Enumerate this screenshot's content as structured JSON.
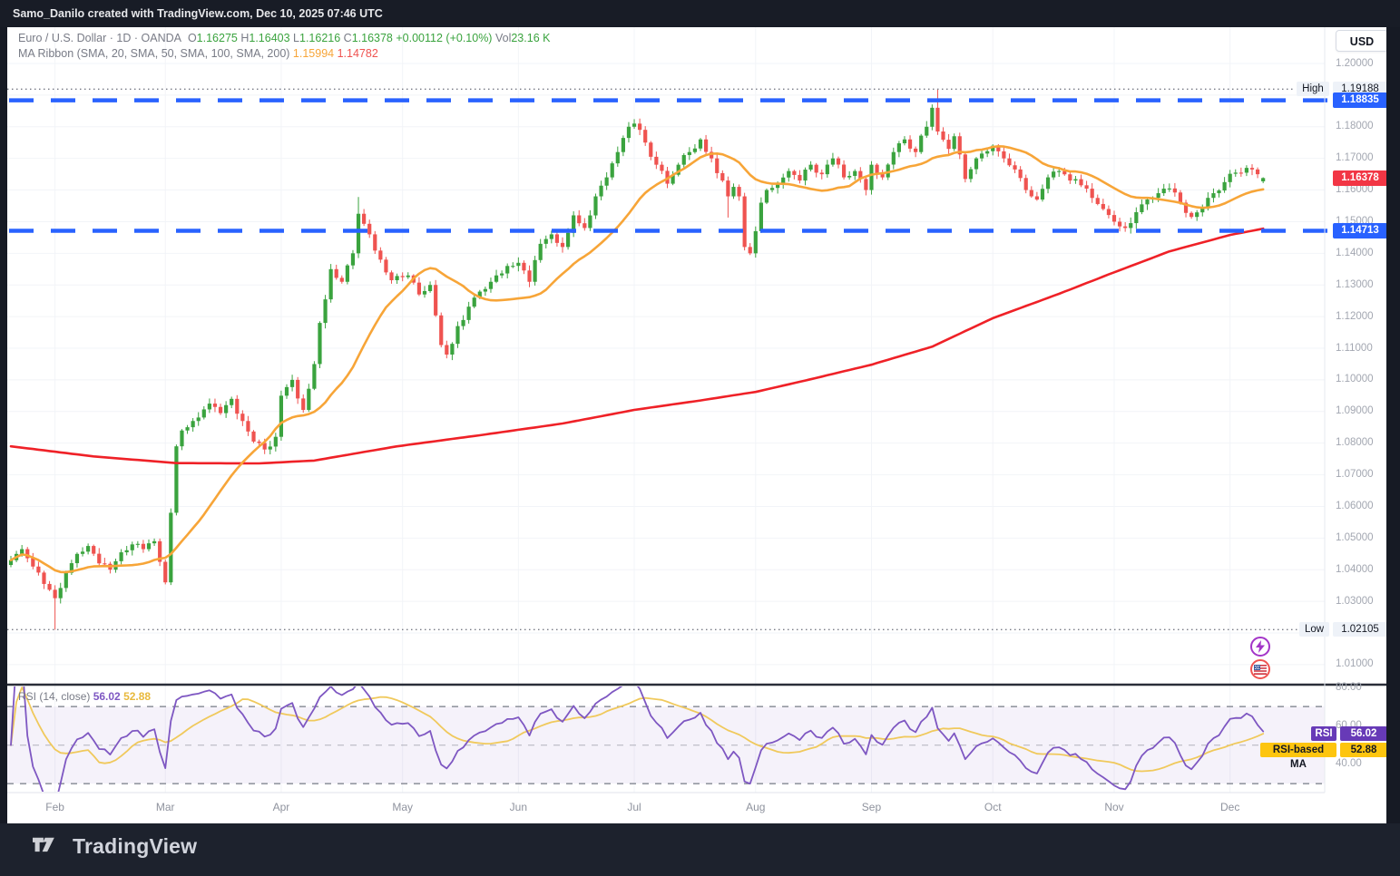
{
  "topbar": {
    "text": "Samo_Danilo created with TradingView.com, Dec 10, 2025 07:46 UTC"
  },
  "header": {
    "symbol": "Euro / U.S. Dollar",
    "sep1": "·",
    "interval": "1D",
    "sep2": "·",
    "exchange": "OANDA",
    "o_label": "O",
    "o_value": "1.16275",
    "h_label": "H",
    "h_value": "1.16403",
    "l_label": "L",
    "l_value": "1.16216",
    "c_label": "C",
    "c_value": "1.16378",
    "change": "+0.00112 (+0.10%)",
    "vol_label": "Vol",
    "vol_value": "23.16 K",
    "ma_ribbon_label": "MA Ribbon (SMA, 20, SMA, 50, SMA, 100, SMA, 200)",
    "ma20_value": "1.15994",
    "ma200_value": "1.14782"
  },
  "axis": {
    "currency": "USD",
    "high_label": "High",
    "high_value": "1.19188",
    "low_label": "Low",
    "low_value": "1.02105",
    "resistance_badge": "1.18835",
    "support_badge": "1.14713",
    "last_badge": "1.16378",
    "price_ticks": [
      {
        "label": "1.20000",
        "price": 1.2
      },
      {
        "label": "1.18000",
        "price": 1.18
      },
      {
        "label": "1.17000",
        "price": 1.17
      },
      {
        "label": "1.16000",
        "price": 1.16
      },
      {
        "label": "1.15000",
        "price": 1.15
      },
      {
        "label": "1.14000",
        "price": 1.14
      },
      {
        "label": "1.13000",
        "price": 1.13
      },
      {
        "label": "1.12000",
        "price": 1.12
      },
      {
        "label": "1.11000",
        "price": 1.11
      },
      {
        "label": "1.10000",
        "price": 1.1
      },
      {
        "label": "1.09000",
        "price": 1.09
      },
      {
        "label": "1.08000",
        "price": 1.08
      },
      {
        "label": "1.07000",
        "price": 1.07
      },
      {
        "label": "1.06000",
        "price": 1.06
      },
      {
        "label": "1.05000",
        "price": 1.05
      },
      {
        "label": "1.04000",
        "price": 1.04
      },
      {
        "label": "1.03000",
        "price": 1.03
      },
      {
        "label": "1.01000",
        "price": 1.01
      }
    ],
    "rsi_ticks": [
      {
        "label": "80.00",
        "value": 80
      },
      {
        "label": "60.00",
        "value": 60
      },
      {
        "label": "40.00",
        "value": 40
      }
    ]
  },
  "time_axis": {
    "months": [
      {
        "label": "Feb",
        "day": 8
      },
      {
        "label": "Mar",
        "day": 28
      },
      {
        "label": "Apr",
        "day": 49
      },
      {
        "label": "May",
        "day": 71
      },
      {
        "label": "Jun",
        "day": 92
      },
      {
        "label": "Jul",
        "day": 113
      },
      {
        "label": "Aug",
        "day": 135
      },
      {
        "label": "Sep",
        "day": 156
      },
      {
        "label": "Oct",
        "day": 178
      },
      {
        "label": "Nov",
        "day": 200
      },
      {
        "label": "Dec",
        "day": 221
      }
    ]
  },
  "rsi_pane": {
    "legend_label": "RSI (14, close)",
    "value": "56.02",
    "ma_value": "52.88",
    "badge_label": "RSI",
    "badge_value": "56.02",
    "ma_badge_label": "RSI-based MA",
    "ma_badge_value": "52.88"
  },
  "footer": {
    "brand": "TradingView"
  },
  "colors": {
    "up": "#3aa33e",
    "down": "#ef5350",
    "sma20": "#f7a538",
    "sma200": "#ef2127",
    "level_blue": "#2962ff",
    "badge_red": "#f23645",
    "rsi_line": "#7e57c2",
    "rsi_ma_line": "#f0c95c",
    "rsi_band": "rgba(126,87,194,0.08)",
    "guide_gray": "#9598a1",
    "grid": "#f2f4f8",
    "dotted_level": "#787b86"
  },
  "chart_data": {
    "type": "candlestick",
    "title": "Euro / U.S. Dollar, 1D, OANDA",
    "num_days": 228,
    "ylim": [
      1.0037,
      1.2115
    ],
    "levels": {
      "high": 1.19188,
      "low": 1.02105,
      "resistance": 1.18835,
      "support": 1.14713,
      "last_close": 1.16378
    },
    "last_candle": {
      "open": 1.16275,
      "high": 1.16403,
      "low": 1.16216,
      "close": 1.16378
    },
    "wick_overrides": {
      "8": {
        "low": 1.02105
      },
      "63": {
        "high": 1.1578
      },
      "130": {
        "low": 1.1513
      },
      "168": {
        "high": 1.19188
      },
      "202": {
        "low": 1.1468
      }
    },
    "close_anchors": [
      [
        0,
        1.043
      ],
      [
        2,
        1.0465
      ],
      [
        4,
        1.041
      ],
      [
        6,
        1.0355
      ],
      [
        8,
        1.031
      ],
      [
        10,
        1.039
      ],
      [
        12,
        1.045
      ],
      [
        14,
        1.0475
      ],
      [
        16,
        1.042
      ],
      [
        18,
        1.04
      ],
      [
        20,
        1.0455
      ],
      [
        22,
        1.048
      ],
      [
        24,
        1.0465
      ],
      [
        26,
        1.049
      ],
      [
        27,
        1.0425
      ],
      [
        28,
        1.036
      ],
      [
        29,
        1.058
      ],
      [
        30,
        1.079
      ],
      [
        31,
        1.084
      ],
      [
        33,
        1.087
      ],
      [
        36,
        1.0925
      ],
      [
        38,
        1.0895
      ],
      [
        40,
        1.094
      ],
      [
        42,
        1.087
      ],
      [
        44,
        1.0805
      ],
      [
        46,
        1.078
      ],
      [
        48,
        1.082
      ],
      [
        49,
        1.095
      ],
      [
        51,
        1.1
      ],
      [
        53,
        1.0905
      ],
      [
        55,
        1.105
      ],
      [
        56,
        1.118
      ],
      [
        58,
        1.135
      ],
      [
        60,
        1.131
      ],
      [
        62,
        1.14
      ],
      [
        63,
        1.1525
      ],
      [
        65,
        1.146
      ],
      [
        67,
        1.138
      ],
      [
        69,
        1.1315
      ],
      [
        72,
        1.133
      ],
      [
        74,
        1.127
      ],
      [
        76,
        1.13
      ],
      [
        78,
        1.111
      ],
      [
        79,
        1.108
      ],
      [
        81,
        1.117
      ],
      [
        84,
        1.126
      ],
      [
        87,
        1.131
      ],
      [
        90,
        1.136
      ],
      [
        92,
        1.137
      ],
      [
        94,
        1.131
      ],
      [
        96,
        1.143
      ],
      [
        98,
        1.146
      ],
      [
        100,
        1.142
      ],
      [
        102,
        1.152
      ],
      [
        104,
        1.148
      ],
      [
        106,
        1.158
      ],
      [
        108,
        1.164
      ],
      [
        110,
        1.172
      ],
      [
        112,
        1.18
      ],
      [
        113,
        1.181
      ],
      [
        115,
        1.175
      ],
      [
        117,
        1.168
      ],
      [
        119,
        1.162
      ],
      [
        121,
        1.168
      ],
      [
        123,
        1.172
      ],
      [
        125,
        1.176
      ],
      [
        127,
        1.17
      ],
      [
        129,
        1.163
      ],
      [
        130,
        1.158
      ],
      [
        131,
        1.161
      ],
      [
        132,
        1.158
      ],
      [
        133,
        1.142
      ],
      [
        134,
        1.14
      ],
      [
        135,
        1.147
      ],
      [
        136,
        1.156
      ],
      [
        137,
        1.16
      ],
      [
        139,
        1.162
      ],
      [
        141,
        1.166
      ],
      [
        143,
        1.163
      ],
      [
        145,
        1.168
      ],
      [
        147,
        1.165
      ],
      [
        149,
        1.17
      ],
      [
        151,
        1.164
      ],
      [
        153,
        1.166
      ],
      [
        155,
        1.16
      ],
      [
        156,
        1.168
      ],
      [
        158,
        1.164
      ],
      [
        160,
        1.172
      ],
      [
        162,
        1.176
      ],
      [
        164,
        1.172
      ],
      [
        166,
        1.18
      ],
      [
        167,
        1.186
      ],
      [
        168,
        1.1785
      ],
      [
        170,
        1.173
      ],
      [
        171,
        1.177
      ],
      [
        173,
        1.1635
      ],
      [
        175,
        1.17
      ],
      [
        178,
        1.174
      ],
      [
        180,
        1.17
      ],
      [
        182,
        1.1665
      ],
      [
        184,
        1.16
      ],
      [
        186,
        1.157
      ],
      [
        188,
        1.164
      ],
      [
        190,
        1.166
      ],
      [
        192,
        1.163
      ],
      [
        194,
        1.1615
      ],
      [
        196,
        1.1575
      ],
      [
        198,
        1.154
      ],
      [
        200,
        1.15
      ],
      [
        202,
        1.148
      ],
      [
        204,
        1.153
      ],
      [
        206,
        1.157
      ],
      [
        208,
        1.159
      ],
      [
        210,
        1.1605
      ],
      [
        212,
        1.156
      ],
      [
        214,
        1.1515
      ],
      [
        216,
        1.1545
      ],
      [
        218,
        1.159
      ],
      [
        220,
        1.1625
      ],
      [
        222,
        1.1655
      ],
      [
        224,
        1.167
      ],
      [
        226,
        1.165
      ],
      [
        227,
        1.16378
      ]
    ],
    "sma200_anchors": [
      [
        0,
        1.079
      ],
      [
        15,
        1.0758
      ],
      [
        30,
        1.0737
      ],
      [
        45,
        1.0736
      ],
      [
        55,
        1.0745
      ],
      [
        70,
        1.079
      ],
      [
        85,
        1.0825
      ],
      [
        100,
        1.0862
      ],
      [
        113,
        1.0905
      ],
      [
        125,
        1.0935
      ],
      [
        135,
        1.0962
      ],
      [
        145,
        1.1002
      ],
      [
        156,
        1.1048
      ],
      [
        167,
        1.1105
      ],
      [
        178,
        1.1195
      ],
      [
        190,
        1.1272
      ],
      [
        200,
        1.134
      ],
      [
        210,
        1.1406
      ],
      [
        221,
        1.1458
      ],
      [
        227,
        1.1478
      ]
    ],
    "sma20_period": 20,
    "rsi": {
      "period": 14,
      "ma_period": 14,
      "guides": [
        70,
        50,
        30
      ],
      "last": 56.02,
      "last_ma": 52.88
    }
  }
}
